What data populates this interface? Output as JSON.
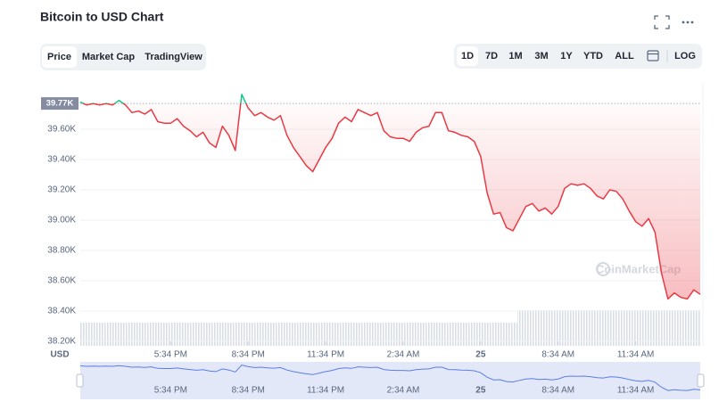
{
  "chart_data": {
    "type": "line",
    "title": "Bitcoin to USD Chart",
    "tabs": [
      "Price",
      "Market Cap",
      "TradingView"
    ],
    "active_tab": "Price",
    "ranges": [
      "1D",
      "7D",
      "1M",
      "3M",
      "1Y",
      "YTD",
      "ALL"
    ],
    "active_range": "1D",
    "scale_button": "LOG",
    "currency": "USD",
    "watermark": "CoinMarketCap",
    "reference": {
      "value": 39770,
      "label": "39.77K"
    },
    "colors": {
      "up": "#16c784",
      "down": "#ea3943",
      "navigator": "#5b7de6"
    },
    "xlim": [
      0,
      96
    ],
    "xticks": [
      {
        "value": 14,
        "label": "5:34 PM"
      },
      {
        "value": 26,
        "label": "8:34 PM"
      },
      {
        "value": 38,
        "label": "11:34 PM"
      },
      {
        "value": 50,
        "label": "2:34 AM"
      },
      {
        "value": 62,
        "label": "25"
      },
      {
        "value": 74,
        "label": "8:34 AM"
      },
      {
        "value": 86,
        "label": "11:34 AM"
      }
    ],
    "ylim": [
      38200,
      39900
    ],
    "yticks": [
      {
        "value": 38200,
        "label": "38.20K"
      },
      {
        "value": 38400,
        "label": "38.40K"
      },
      {
        "value": 38600,
        "label": "38.60K"
      },
      {
        "value": 38800,
        "label": "38.80K"
      },
      {
        "value": 39000,
        "label": "39.00K"
      },
      {
        "value": 39200,
        "label": "39.20K"
      },
      {
        "value": 39400,
        "label": "39.40K"
      },
      {
        "value": 39600,
        "label": "39.60K"
      }
    ],
    "grid": true,
    "values": [
      39780,
      39760,
      39770,
      39760,
      39770,
      39760,
      39790,
      39760,
      39710,
      39720,
      39700,
      39730,
      39650,
      39640,
      39640,
      39670,
      39620,
      39590,
      39550,
      39580,
      39510,
      39480,
      39620,
      39560,
      39460,
      39830,
      39740,
      39690,
      39710,
      39680,
      39660,
      39690,
      39560,
      39480,
      39420,
      39360,
      39320,
      39400,
      39480,
      39540,
      39640,
      39680,
      39650,
      39730,
      39710,
      39690,
      39710,
      39590,
      39550,
      39540,
      39540,
      39520,
      39580,
      39610,
      39620,
      39710,
      39710,
      39590,
      39580,
      39560,
      39550,
      39520,
      39420,
      39180,
      39040,
      39050,
      38950,
      38930,
      39010,
      39090,
      39110,
      39060,
      39080,
      39040,
      39090,
      39210,
      39240,
      39230,
      39240,
      39210,
      39160,
      39140,
      39200,
      39190,
      39140,
      39060,
      38990,
      38960,
      39010,
      38920,
      38650,
      38480,
      38520,
      38490,
      38480,
      38540,
      38510
    ]
  }
}
